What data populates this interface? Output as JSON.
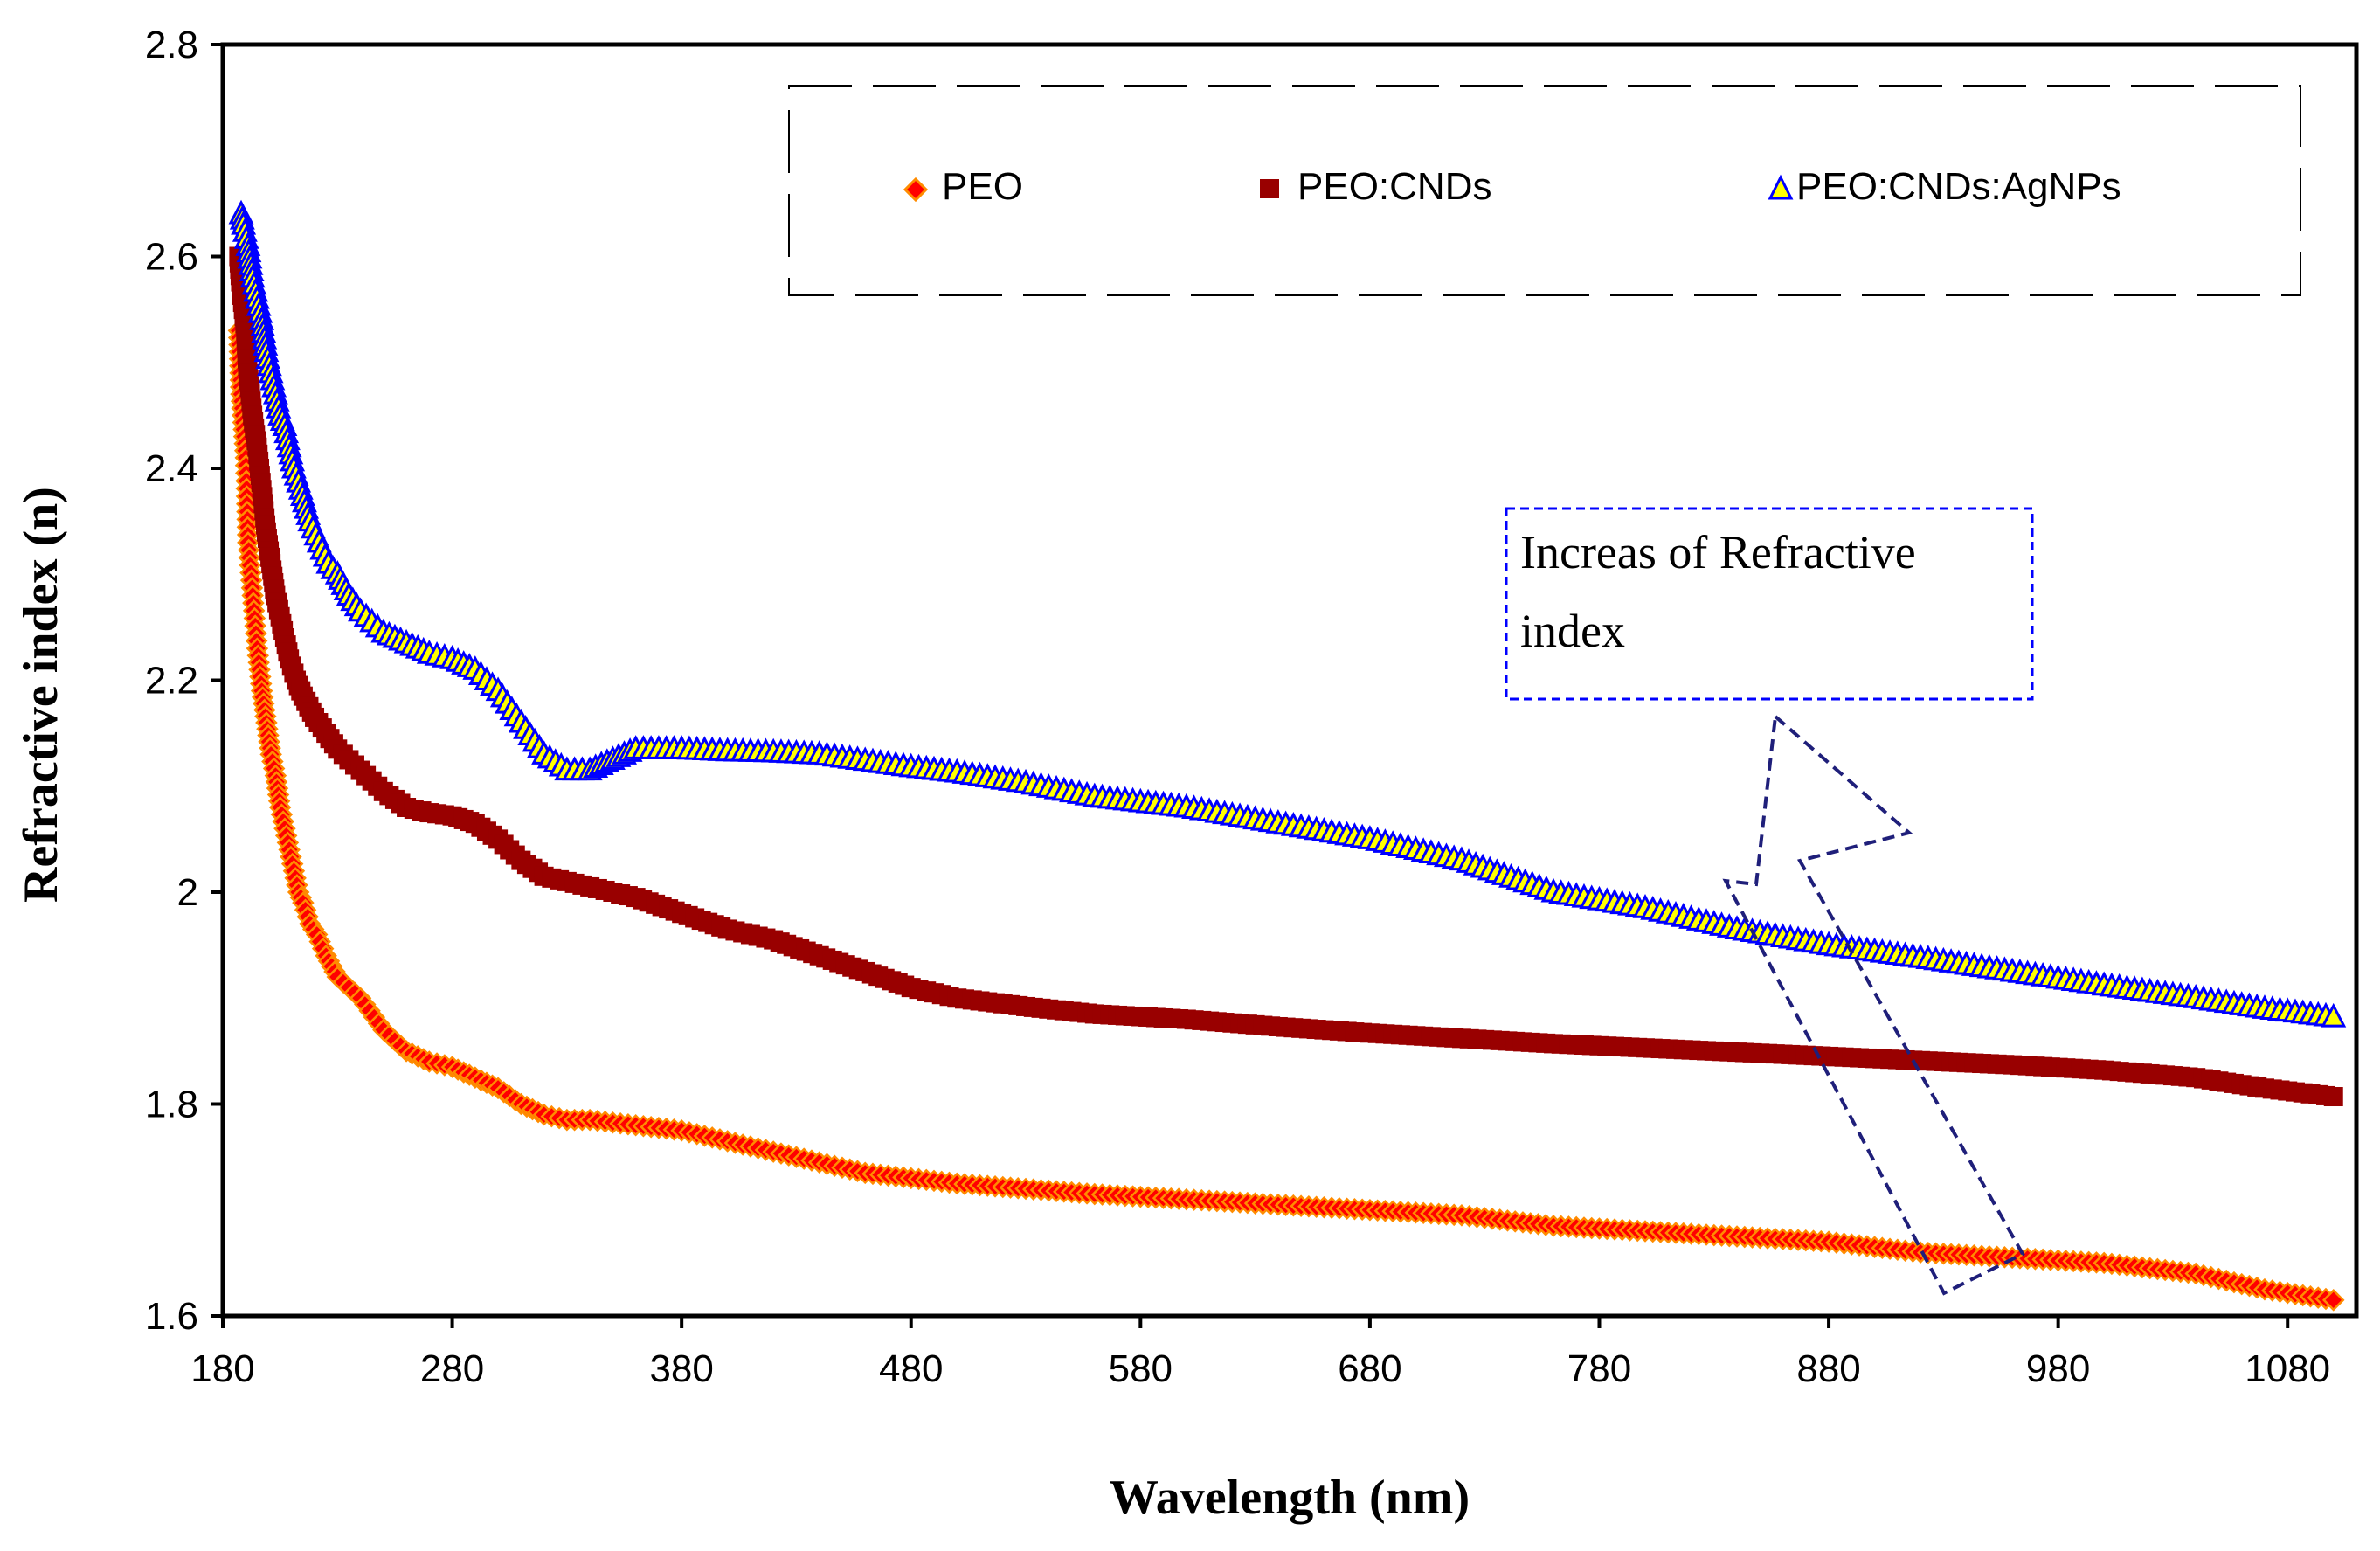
{
  "chart_data": {
    "type": "scatter",
    "title": "",
    "xlabel": "Wavelength (nm)",
    "ylabel": "Refractive index (n)",
    "xlim": [
      180,
      1110
    ],
    "ylim": [
      1.6,
      2.8
    ],
    "xticks": [
      180,
      280,
      380,
      480,
      580,
      680,
      780,
      880,
      980,
      1080
    ],
    "yticks": [
      1.6,
      1.8,
      2.0,
      2.2,
      2.4,
      2.6,
      2.8
    ],
    "ytick_labels": [
      "1.6",
      "1.8",
      "2",
      "2.2",
      "2.4",
      "2.6",
      "2.8"
    ],
    "legend": {
      "position": "top-right",
      "entries": [
        "PEO",
        "PEO:CNDs",
        "PEO:CNDs:AgNPs"
      ]
    },
    "annotation": {
      "text_line1": "Increas of Refractive",
      "text_line2": "index"
    },
    "series": [
      {
        "name": "PEO",
        "marker": "diamond",
        "color": "#ff0000",
        "edge": "#ff8c00",
        "points": [
          [
            187,
            2.53
          ],
          [
            188,
            2.47
          ],
          [
            190,
            2.41
          ],
          [
            191,
            2.33
          ],
          [
            193,
            2.28
          ],
          [
            195,
            2.23
          ],
          [
            197,
            2.19
          ],
          [
            199,
            2.16
          ],
          [
            201,
            2.13
          ],
          [
            203,
            2.11
          ],
          [
            205,
            2.08
          ],
          [
            207,
            2.06
          ],
          [
            209,
            2.04
          ],
          [
            211,
            2.02
          ],
          [
            213,
            2.0
          ],
          [
            215,
            1.99
          ],
          [
            218,
            1.97
          ],
          [
            221,
            1.96
          ],
          [
            225,
            1.94
          ],
          [
            230,
            1.92
          ],
          [
            240,
            1.9
          ],
          [
            250,
            1.87
          ],
          [
            260,
            1.85
          ],
          [
            270,
            1.84
          ],
          [
            280,
            1.835
          ],
          [
            290,
            1.825
          ],
          [
            300,
            1.815
          ],
          [
            310,
            1.8
          ],
          [
            320,
            1.79
          ],
          [
            330,
            1.785
          ],
          [
            340,
            1.785
          ],
          [
            360,
            1.78
          ],
          [
            380,
            1.775
          ],
          [
            400,
            1.765
          ],
          [
            420,
            1.755
          ],
          [
            440,
            1.745
          ],
          [
            460,
            1.735
          ],
          [
            480,
            1.73
          ],
          [
            500,
            1.725
          ],
          [
            530,
            1.72
          ],
          [
            560,
            1.715
          ],
          [
            600,
            1.71
          ],
          [
            640,
            1.705
          ],
          [
            680,
            1.7
          ],
          [
            720,
            1.695
          ],
          [
            760,
            1.685
          ],
          [
            800,
            1.68
          ],
          [
            840,
            1.675
          ],
          [
            880,
            1.67
          ],
          [
            920,
            1.66
          ],
          [
            960,
            1.655
          ],
          [
            1000,
            1.65
          ],
          [
            1040,
            1.64
          ],
          [
            1070,
            1.625
          ],
          [
            1100,
            1.615
          ]
        ]
      },
      {
        "name": "PEO:CNDs",
        "marker": "square",
        "color": "#990000",
        "edge": "#990000",
        "points": [
          [
            187,
            2.6
          ],
          [
            188,
            2.57
          ],
          [
            190,
            2.53
          ],
          [
            191,
            2.49
          ],
          [
            193,
            2.45
          ],
          [
            195,
            2.42
          ],
          [
            197,
            2.38
          ],
          [
            199,
            2.34
          ],
          [
            201,
            2.31
          ],
          [
            203,
            2.28
          ],
          [
            205,
            2.26
          ],
          [
            207,
            2.24
          ],
          [
            209,
            2.22
          ],
          [
            212,
            2.2
          ],
          [
            215,
            2.185
          ],
          [
            220,
            2.165
          ],
          [
            225,
            2.15
          ],
          [
            230,
            2.135
          ],
          [
            240,
            2.115
          ],
          [
            250,
            2.095
          ],
          [
            260,
            2.08
          ],
          [
            270,
            2.075
          ],
          [
            280,
            2.072
          ],
          [
            290,
            2.065
          ],
          [
            300,
            2.05
          ],
          [
            310,
            2.03
          ],
          [
            320,
            2.015
          ],
          [
            340,
            2.005
          ],
          [
            360,
            1.995
          ],
          [
            380,
            1.98
          ],
          [
            400,
            1.965
          ],
          [
            420,
            1.955
          ],
          [
            440,
            1.94
          ],
          [
            460,
            1.925
          ],
          [
            480,
            1.91
          ],
          [
            500,
            1.9
          ],
          [
            530,
            1.892
          ],
          [
            560,
            1.885
          ],
          [
            600,
            1.88
          ],
          [
            640,
            1.873
          ],
          [
            680,
            1.867
          ],
          [
            720,
            1.862
          ],
          [
            760,
            1.857
          ],
          [
            800,
            1.853
          ],
          [
            840,
            1.849
          ],
          [
            880,
            1.845
          ],
          [
            920,
            1.841
          ],
          [
            960,
            1.837
          ],
          [
            1000,
            1.832
          ],
          [
            1040,
            1.825
          ],
          [
            1070,
            1.815
          ],
          [
            1100,
            1.807
          ]
        ]
      },
      {
        "name": "PEO:CNDs:AgNPs",
        "marker": "triangle",
        "color": "#ffff00",
        "edge": "#0000ff",
        "points": [
          [
            188,
            2.64
          ],
          [
            189,
            2.63
          ],
          [
            191,
            2.61
          ],
          [
            193,
            2.58
          ],
          [
            195,
            2.56
          ],
          [
            197,
            2.54
          ],
          [
            199,
            2.51
          ],
          [
            201,
            2.49
          ],
          [
            203,
            2.47
          ],
          [
            205,
            2.45
          ],
          [
            207,
            2.44
          ],
          [
            209,
            2.42
          ],
          [
            211,
            2.4
          ],
          [
            214,
            2.38
          ],
          [
            218,
            2.35
          ],
          [
            222,
            2.33
          ],
          [
            226,
            2.31
          ],
          [
            230,
            2.3
          ],
          [
            235,
            2.28
          ],
          [
            240,
            2.265
          ],
          [
            245,
            2.255
          ],
          [
            250,
            2.245
          ],
          [
            260,
            2.235
          ],
          [
            270,
            2.225
          ],
          [
            280,
            2.22
          ],
          [
            290,
            2.21
          ],
          [
            300,
            2.19
          ],
          [
            310,
            2.16
          ],
          [
            320,
            2.13
          ],
          [
            330,
            2.115
          ],
          [
            340,
            2.115
          ],
          [
            350,
            2.125
          ],
          [
            360,
            2.135
          ],
          [
            380,
            2.135
          ],
          [
            400,
            2.133
          ],
          [
            420,
            2.132
          ],
          [
            440,
            2.13
          ],
          [
            460,
            2.124
          ],
          [
            480,
            2.118
          ],
          [
            500,
            2.113
          ],
          [
            530,
            2.103
          ],
          [
            560,
            2.09
          ],
          [
            600,
            2.08
          ],
          [
            640,
            2.065
          ],
          [
            680,
            2.05
          ],
          [
            720,
            2.03
          ],
          [
            760,
            2.0
          ],
          [
            800,
            1.985
          ],
          [
            840,
            1.965
          ],
          [
            880,
            1.95
          ],
          [
            920,
            1.938
          ],
          [
            960,
            1.925
          ],
          [
            1000,
            1.912
          ],
          [
            1040,
            1.9
          ],
          [
            1070,
            1.89
          ],
          [
            1100,
            1.882
          ]
        ]
      }
    ]
  }
}
